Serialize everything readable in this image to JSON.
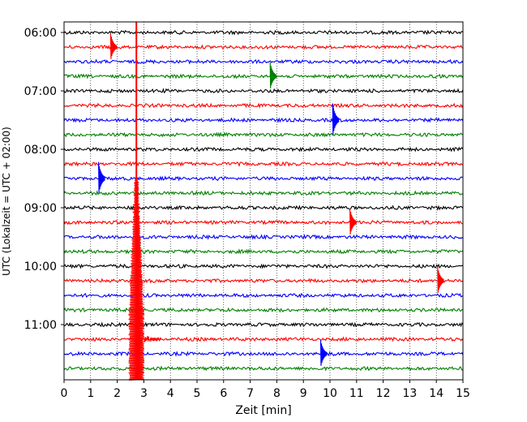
{
  "chart_data": {
    "type": "line",
    "title": "",
    "xlabel": "Zeit  [min]",
    "ylabel": "UTC (Lokalzeit = UTC + 02:00)",
    "xlim": [
      0,
      15
    ],
    "x_ticks": [
      "0",
      "1",
      "2",
      "3",
      "4",
      "5",
      "6",
      "7",
      "8",
      "9",
      "10",
      "11",
      "12",
      "13",
      "14",
      "15"
    ],
    "y_tick_labels": [
      "06:00",
      "07:00",
      "08:00",
      "09:00",
      "10:00",
      "11:00"
    ],
    "y_tick_rows": [
      0,
      4,
      8,
      12,
      16,
      20
    ],
    "grid": "vertical dotted lines at each minute",
    "trace_colors": [
      "#000000",
      "#ff0000",
      "#0000ff",
      "#008000"
    ],
    "traces": [
      {
        "start": "06:00",
        "color": "#000000"
      },
      {
        "start": "06:15",
        "color": "#ff0000"
      },
      {
        "start": "06:30",
        "color": "#0000ff"
      },
      {
        "start": "06:45",
        "color": "#008000"
      },
      {
        "start": "07:00",
        "color": "#000000"
      },
      {
        "start": "07:15",
        "color": "#ff0000"
      },
      {
        "start": "07:30",
        "color": "#0000ff"
      },
      {
        "start": "07:45",
        "color": "#008000"
      },
      {
        "start": "08:00",
        "color": "#000000"
      },
      {
        "start": "08:15",
        "color": "#ff0000"
      },
      {
        "start": "08:30",
        "color": "#0000ff"
      },
      {
        "start": "08:45",
        "color": "#008000"
      },
      {
        "start": "09:00",
        "color": "#000000"
      },
      {
        "start": "09:15",
        "color": "#ff0000"
      },
      {
        "start": "09:30",
        "color": "#0000ff"
      },
      {
        "start": "09:45",
        "color": "#008000"
      },
      {
        "start": "10:00",
        "color": "#000000"
      },
      {
        "start": "10:15",
        "color": "#ff0000"
      },
      {
        "start": "10:30",
        "color": "#0000ff"
      },
      {
        "start": "10:45",
        "color": "#008000"
      },
      {
        "start": "11:00",
        "color": "#000000"
      },
      {
        "start": "11:15",
        "color": "#ff0000"
      },
      {
        "start": "11:30",
        "color": "#0000ff"
      },
      {
        "start": "11:45",
        "color": "#008000"
      }
    ],
    "events": [
      {
        "trace": 1,
        "minute": 1.75,
        "amplitude": 1.0
      },
      {
        "trace": 3,
        "minute": 7.75,
        "amplitude": 1.0
      },
      {
        "trace": 6,
        "minute": 10.1,
        "amplitude": 1.2
      },
      {
        "trace": 10,
        "minute": 1.3,
        "amplitude": 1.2
      },
      {
        "trace": 13,
        "minute": 10.75,
        "amplitude": 1.0
      },
      {
        "trace": 17,
        "minute": 14.05,
        "amplitude": 1.0
      },
      {
        "trace": 22,
        "minute": 9.65,
        "amplitude": 1.0
      }
    ],
    "main_event": {
      "minute": 2.72,
      "note": "large signal around 11:00-11:45 at ~2.8 min"
    }
  }
}
